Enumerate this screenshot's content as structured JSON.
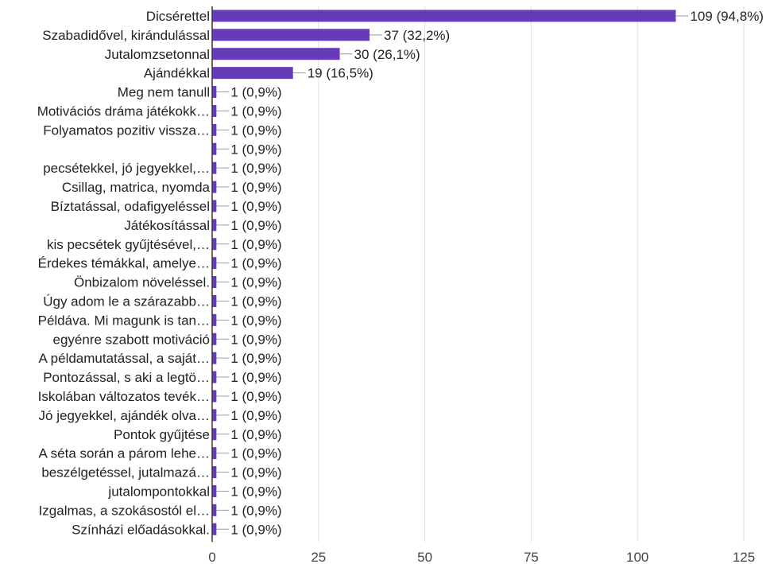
{
  "chart_data": {
    "type": "bar",
    "orientation": "horizontal",
    "categories": [
      "Dicsérettel",
      "Szabadidővel, kirándulással",
      "Jutalomzsetonnal",
      "Ajándékkal",
      "Meg nem tanull",
      "Motivációs dráma játékokk…",
      "Folyamatos pozitiv vissza…",
      "",
      "pecsétekkel, jó jegyekkel,…",
      "Csillag, matrica, nyomda",
      "Bíztatással, odafigyeléssel",
      "Játékosítással",
      "kis pecsétek gyűjtésével,…",
      "Érdekes témákkal, amelye…",
      "Önbizalom növeléssel.",
      "Úgy adom le a szárazabb…",
      "Példáva. Mi magunk is tan…",
      "egyénre szabott motiváció",
      "A példamutatással, a saját…",
      "Pontozással, s aki a legtö…",
      "Iskolában változatos tevék…",
      "Jó jegyekkel, ajándék olva…",
      "Pontok gyűjtése",
      "A séta során a párom lehe…",
      "beszélgetéssel, jutalmazá…",
      "jutalompontokkal",
      "Izgalmas, a szokásostól el…",
      "Színházi előadásokkal."
    ],
    "values": [
      109,
      37,
      30,
      19,
      1,
      1,
      1,
      1,
      1,
      1,
      1,
      1,
      1,
      1,
      1,
      1,
      1,
      1,
      1,
      1,
      1,
      1,
      1,
      1,
      1,
      1,
      1,
      1
    ],
    "value_labels": [
      "109 (94,8%)",
      "37 (32,2%)",
      "30 (26,1%)",
      "19 (16,5%)",
      "1 (0,9%)",
      "1 (0,9%)",
      "1 (0,9%)",
      "1 (0,9%)",
      "1 (0,9%)",
      "1 (0,9%)",
      "1 (0,9%)",
      "1 (0,9%)",
      "1 (0,9%)",
      "1 (0,9%)",
      "1 (0,9%)",
      "1 (0,9%)",
      "1 (0,9%)",
      "1 (0,9%)",
      "1 (0,9%)",
      "1 (0,9%)",
      "1 (0,9%)",
      "1 (0,9%)",
      "1 (0,9%)",
      "1 (0,9%)",
      "1 (0,9%)",
      "1 (0,9%)",
      "1 (0,9%)",
      "1 (0,9%)"
    ],
    "xticks": [
      0,
      25,
      50,
      75,
      100,
      125
    ],
    "xlim": [
      0,
      125
    ],
    "grid": true,
    "colors": {
      "bar": "#673ab7",
      "grid": "#e0e0e0",
      "leader": "#9e9e9e",
      "axis": "#333333"
    }
  }
}
